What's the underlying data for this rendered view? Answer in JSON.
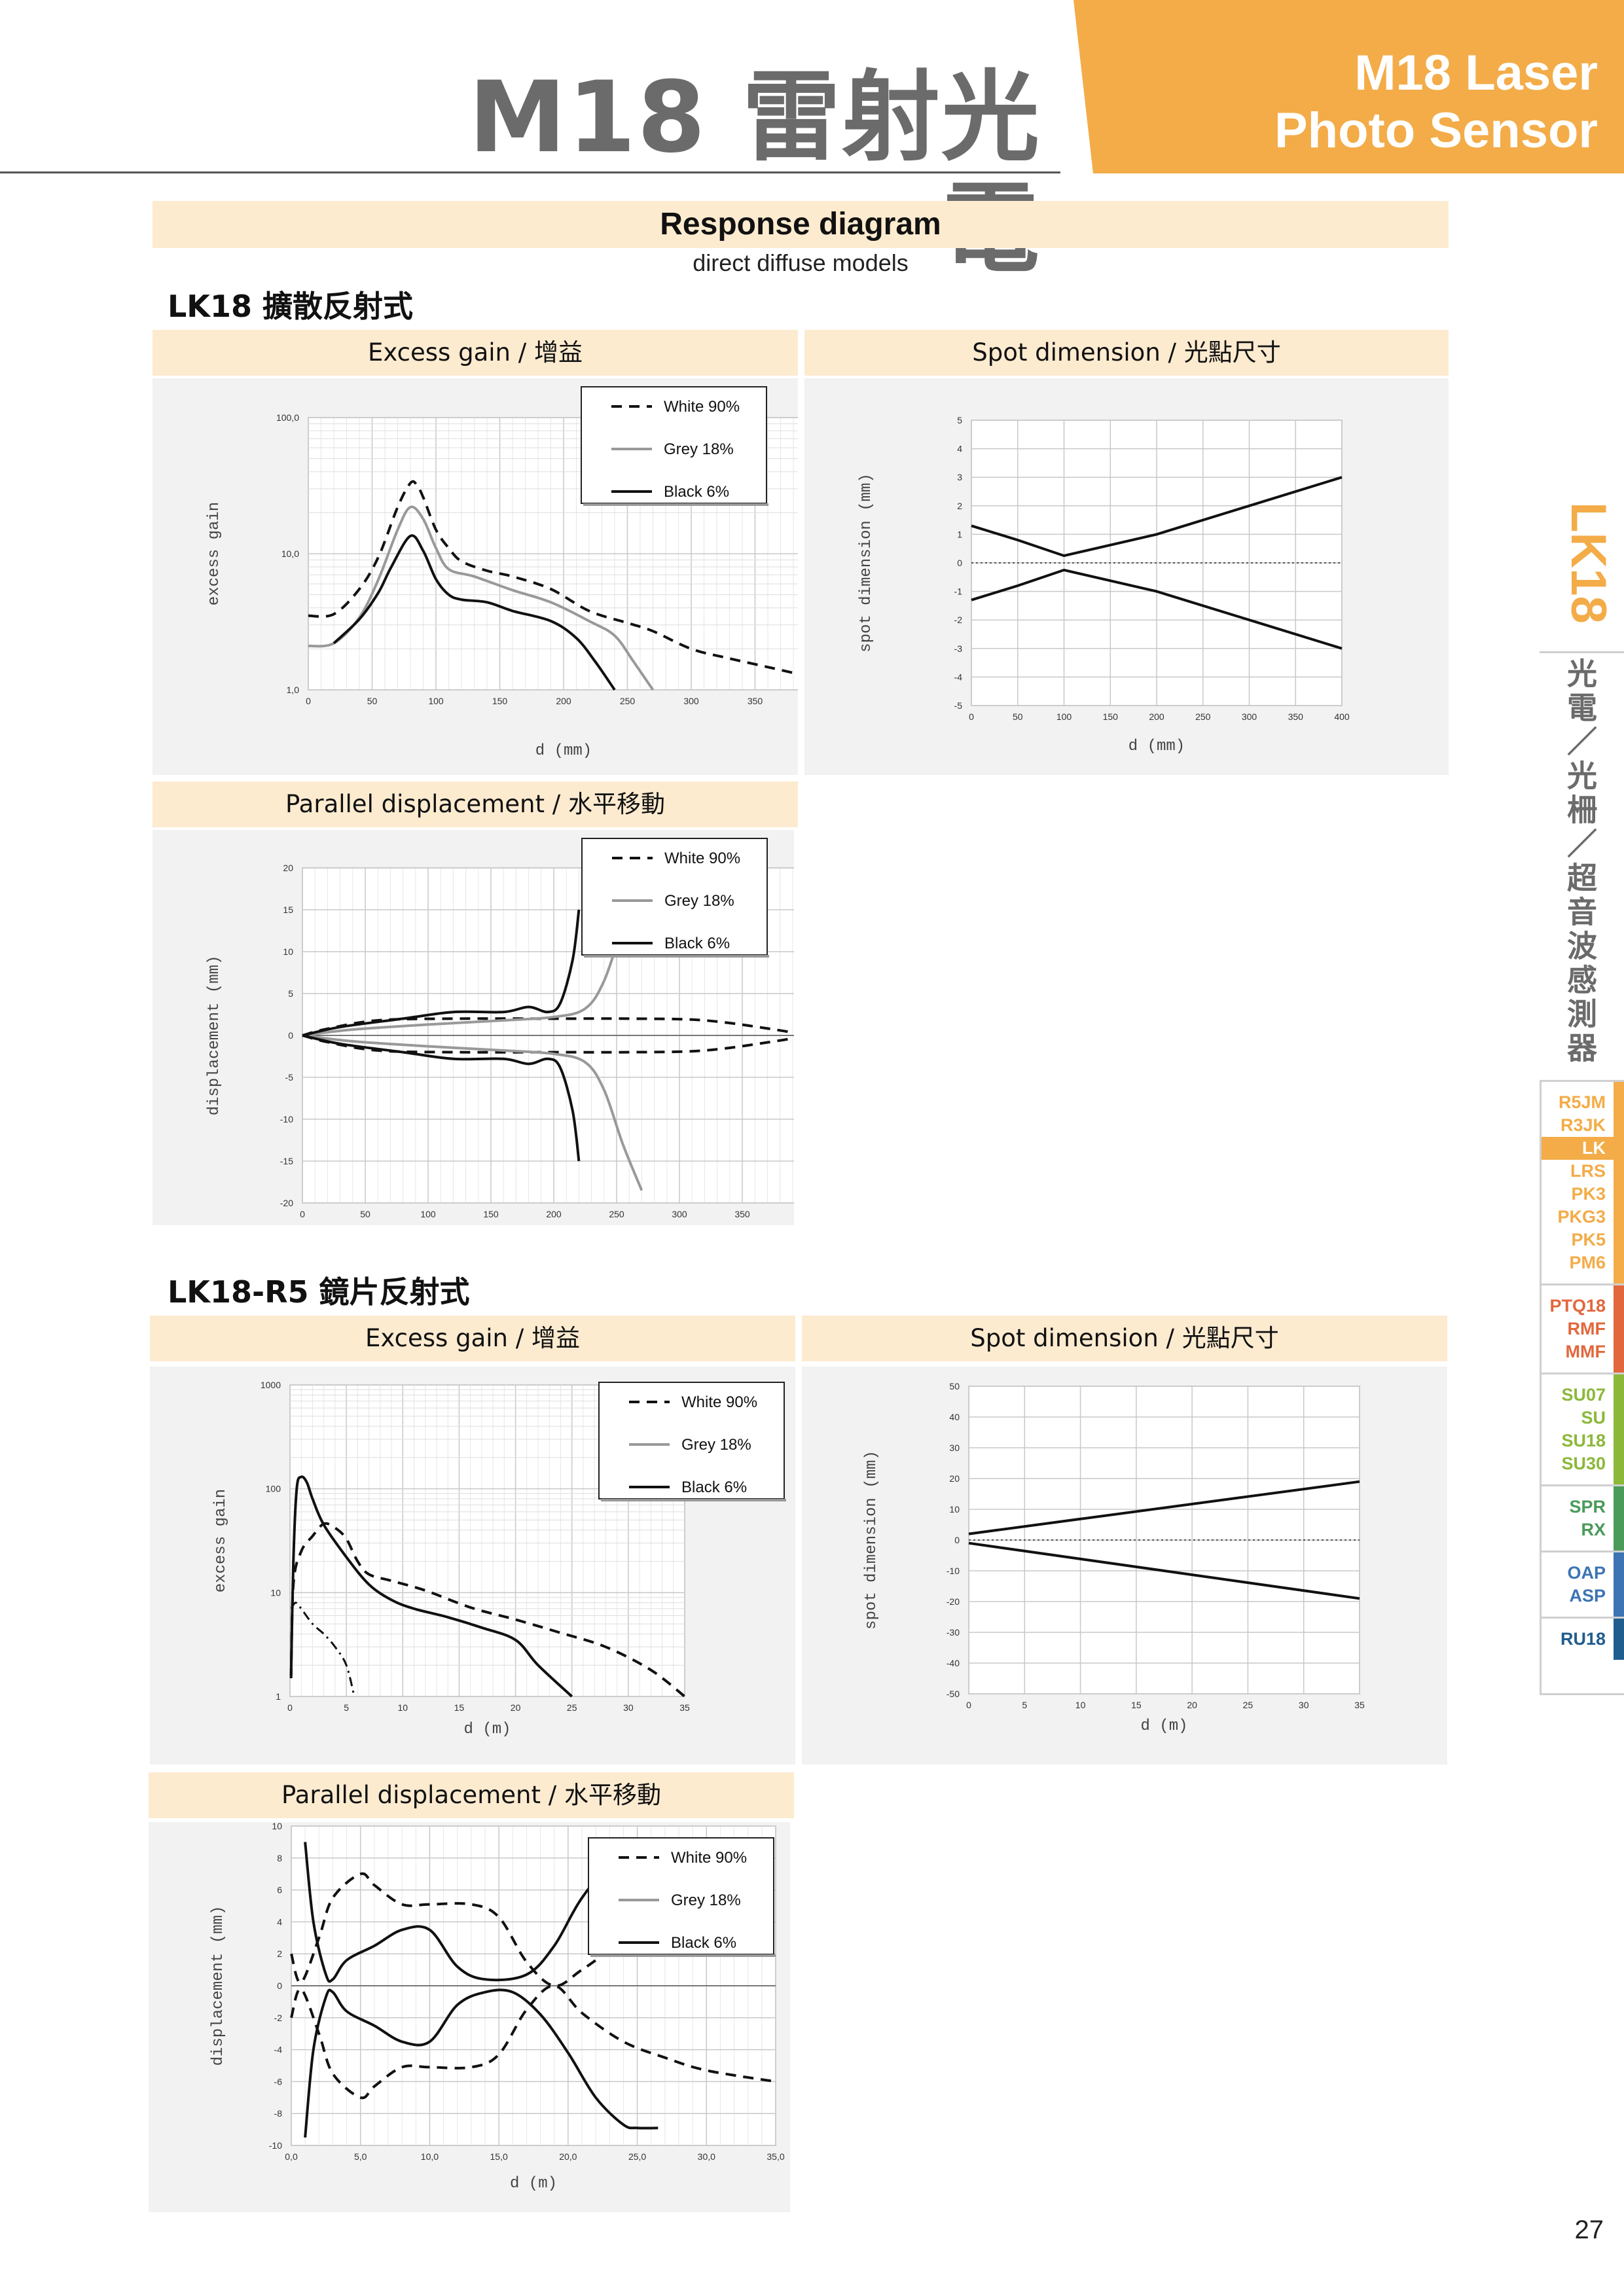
{
  "header": {
    "title_cn": "M18 雷射光電",
    "title_en_line1": "M18 Laser",
    "title_en_line2": "Photo Sensor"
  },
  "response": {
    "title": "Response diagram",
    "subtitle": "direct diffuse models"
  },
  "section1": {
    "heading": "LK18 擴散反射式",
    "excess_gain_title": "Excess gain / 增益",
    "spot_title": "Spot dimension / 光點尺寸",
    "parallel_title": "Parallel displacement / 水平移動"
  },
  "section2": {
    "heading": "LK18-R5 鏡片反射式",
    "excess_gain_title": "Excess gain / 增益",
    "spot_title": "Spot dimension / 光點尺寸",
    "parallel_title": "Parallel displacement / 水平移動"
  },
  "legend": {
    "white": "White 90%",
    "grey": "Grey 18%",
    "black": "Black 6%"
  },
  "sidebar": {
    "model": "LK18",
    "category": "光電／光柵／超音波感測器",
    "groups": [
      {
        "color": "#f3ac48",
        "items": [
          "R5JM",
          "R3JK",
          "LK",
          "LRS",
          "PK3",
          "PKG3",
          "PK5",
          "PM6"
        ],
        "active": "LK"
      },
      {
        "color": "#e2673d",
        "items": [
          "PTQ18",
          "RMF",
          "MMF"
        ]
      },
      {
        "color": "#8cb83a",
        "items": [
          "SU07",
          "SU",
          "SU18",
          "SU30"
        ]
      },
      {
        "color": "#4a9a5a",
        "items": [
          "SPR",
          "RX"
        ]
      },
      {
        "color": "#3c74b4",
        "items": [
          "OAP",
          "ASP"
        ]
      },
      {
        "color": "#1f5d8f",
        "items": [
          "RU18"
        ]
      }
    ]
  },
  "page_number": "27",
  "chart_data": [
    {
      "id": "lk18-gain",
      "type": "line",
      "title": "Excess gain / 增益",
      "xlabel": "d (mm)",
      "ylabel": "excess gain",
      "yscale": "log",
      "xlim": [
        0,
        400
      ],
      "ylim": [
        1,
        100
      ],
      "xticks": [
        "0",
        "50",
        "100",
        "150",
        "200",
        "250",
        "300",
        "350",
        "400"
      ],
      "yticks": [
        "1,0",
        "10,0",
        "100,0"
      ],
      "series": [
        {
          "name": "White 90%",
          "style": "dashed",
          "x": [
            0,
            20,
            40,
            55,
            70,
            80,
            85,
            90,
            100,
            110,
            120,
            140,
            160,
            190,
            220,
            250,
            270,
            300,
            330,
            370,
            400
          ],
          "y": [
            3.5,
            3.6,
            5.5,
            9.5,
            22,
            33,
            32,
            26,
            15,
            11,
            8.8,
            7.5,
            6.8,
            5.5,
            3.8,
            3.1,
            2.7,
            2.0,
            1.7,
            1.4,
            1.2
          ]
        },
        {
          "name": "Grey 18%",
          "style": "solid-grey",
          "x": [
            0,
            20,
            40,
            55,
            70,
            80,
            90,
            100,
            110,
            130,
            160,
            190,
            220,
            240,
            255,
            270
          ],
          "y": [
            2.1,
            2.2,
            3.4,
            6.5,
            15,
            22,
            18,
            11,
            7.7,
            6.8,
            5.4,
            4.4,
            3.2,
            2.5,
            1.6,
            1.0
          ]
        },
        {
          "name": "Black 6%",
          "style": "solid",
          "x": [
            20,
            40,
            55,
            65,
            80,
            90,
            100,
            110,
            120,
            140,
            160,
            190,
            210,
            225,
            240
          ],
          "y": [
            2.2,
            3.3,
            5.2,
            8,
            13.5,
            10.5,
            6.5,
            5.0,
            4.6,
            4.4,
            3.8,
            3.2,
            2.4,
            1.6,
            1.0
          ]
        }
      ]
    },
    {
      "id": "lk18-spot",
      "type": "line",
      "title": "Spot dimension / 光點尺寸",
      "xlabel": "d (mm)",
      "ylabel": "spot dimension (mm)",
      "xlim": [
        0,
        400
      ],
      "ylim": [
        -5,
        5
      ],
      "xticks": [
        "0",
        "50",
        "100",
        "150",
        "200",
        "250",
        "300",
        "350",
        "400"
      ],
      "yticks": [
        "-5",
        "-4",
        "-3",
        "-2",
        "-1",
        "0",
        "1",
        "2",
        "3",
        "4",
        "5"
      ],
      "series": [
        {
          "name": "upper",
          "x": [
            0,
            50,
            100,
            200,
            300,
            400
          ],
          "y": [
            1.3,
            0.8,
            0.25,
            1.0,
            2.0,
            3.0
          ]
        },
        {
          "name": "lower",
          "x": [
            0,
            50,
            100,
            200,
            300,
            400
          ],
          "y": [
            -1.3,
            -0.8,
            -0.25,
            -1.0,
            -2.0,
            -3.0
          ]
        }
      ]
    },
    {
      "id": "lk18-parallel",
      "type": "line",
      "title": "Parallel displacement / 水平移動",
      "xlabel": "",
      "ylabel": "displacement (mm)",
      "xlim": [
        0,
        400
      ],
      "ylim": [
        -20,
        20
      ],
      "xticks": [
        "0",
        "50",
        "100",
        "150",
        "200",
        "250",
        "300",
        "350",
        "400"
      ],
      "yticks": [
        "-20",
        "-15",
        "-10",
        "-5",
        "0",
        "5",
        "10",
        "15",
        "20"
      ],
      "series": [
        {
          "name": "White 90% upper",
          "style": "dashed",
          "x": [
            0,
            20,
            60,
            120,
            200,
            260,
            320,
            380,
            400
          ],
          "y": [
            0,
            0.8,
            1.8,
            2.0,
            2.0,
            2.0,
            1.8,
            0.6,
            0
          ]
        },
        {
          "name": "White 90% lower",
          "style": "dashed",
          "x": [
            0,
            20,
            60,
            120,
            200,
            260,
            320,
            380,
            400
          ],
          "y": [
            0,
            -0.8,
            -1.8,
            -2.0,
            -2.0,
            -2.0,
            -1.8,
            -0.6,
            0
          ]
        },
        {
          "name": "Grey 18% upper",
          "style": "solid-grey",
          "x": [
            0,
            40,
            100,
            160,
            200,
            225,
            240,
            255,
            270
          ],
          "y": [
            0,
            0.7,
            1.3,
            1.8,
            2.2,
            3.2,
            6.5,
            13,
            18.5
          ]
        },
        {
          "name": "Grey 18% lower",
          "style": "solid-grey",
          "x": [
            0,
            40,
            100,
            160,
            200,
            225,
            240,
            255,
            270
          ],
          "y": [
            0,
            -0.7,
            -1.3,
            -1.8,
            -2.2,
            -3.2,
            -6.5,
            -13,
            -18.5
          ]
        },
        {
          "name": "Black 6% upper",
          "style": "solid",
          "x": [
            0,
            30,
            80,
            120,
            160,
            180,
            195,
            205,
            215,
            220
          ],
          "y": [
            0,
            1.0,
            2.0,
            2.8,
            2.8,
            3.4,
            2.8,
            3.8,
            9,
            15
          ]
        },
        {
          "name": "Black 6% lower",
          "style": "solid",
          "x": [
            0,
            30,
            80,
            120,
            160,
            180,
            195,
            205,
            215,
            220
          ],
          "y": [
            0,
            -1.0,
            -2.0,
            -2.8,
            -2.8,
            -3.4,
            -2.8,
            -3.8,
            -9,
            -15
          ]
        }
      ]
    },
    {
      "id": "lk18r5-gain",
      "type": "line",
      "title": "Excess gain / 增益",
      "xlabel": "d (m)",
      "ylabel": "excess gain",
      "yscale": "log",
      "xlim": [
        0,
        35
      ],
      "ylim": [
        1,
        1000
      ],
      "xticks": [
        "0",
        "5",
        "10",
        "15",
        "20",
        "25",
        "30",
        "35"
      ],
      "yticks": [
        "1",
        "10",
        "100",
        "1000"
      ],
      "series": [
        {
          "name": "White 90%",
          "style": "dashed",
          "x": [
            0.1,
            0.3,
            1,
            2,
            3,
            4,
            5,
            6,
            7,
            9,
            12,
            16,
            20,
            24,
            28,
            32,
            35
          ],
          "y": [
            1.5,
            12,
            25,
            35,
            46,
            42,
            33,
            20,
            15,
            13,
            10.5,
            7.2,
            5.5,
            4.1,
            3.0,
            1.8,
            1.0
          ]
        },
        {
          "name": "Black 6%",
          "style": "solid",
          "x": [
            0.1,
            0.3,
            0.6,
            1,
            1.5,
            2,
            3,
            5,
            7,
            9,
            11,
            14,
            17,
            20,
            22,
            25
          ],
          "y": [
            1.6,
            20,
            100,
            130,
            115,
            80,
            45,
            22,
            12,
            8.5,
            7.0,
            5.8,
            4.6,
            3.5,
            2.0,
            1.0
          ]
        },
        {
          "name": "short-range dash-dot",
          "style": "dashdot",
          "x": [
            0.1,
            0.5,
            1,
            2,
            3,
            4,
            5,
            5.7
          ],
          "y": [
            7,
            8,
            7,
            5,
            4,
            3,
            2,
            1
          ]
        }
      ]
    },
    {
      "id": "lk18r5-spot",
      "type": "line",
      "title": "Spot dimension / 光點尺寸",
      "xlabel": "d (m)",
      "ylabel": "spot dimension (mm)",
      "xlim": [
        0,
        35
      ],
      "ylim": [
        -50,
        50
      ],
      "xticks": [
        "0",
        "5",
        "10",
        "15",
        "20",
        "25",
        "30",
        "35"
      ],
      "yticks": [
        "-50",
        "-40",
        "-30",
        "-20",
        "-10",
        "0",
        "10",
        "20",
        "30",
        "40",
        "50"
      ],
      "series": [
        {
          "name": "upper",
          "x": [
            0,
            35
          ],
          "y": [
            2,
            19
          ]
        },
        {
          "name": "lower",
          "x": [
            0,
            35
          ],
          "y": [
            -1,
            -19
          ]
        }
      ]
    },
    {
      "id": "lk18r5-parallel",
      "type": "line",
      "title": "Parallel displacement / 水平移動",
      "xlabel": "d (m)",
      "ylabel": "displacement (mm)",
      "xlim": [
        0,
        35
      ],
      "ylim": [
        -10,
        10
      ],
      "xticks": [
        "0,0",
        "5,0",
        "10,0",
        "15,0",
        "20,0",
        "25,0",
        "30,0",
        "35,0"
      ],
      "yticks": [
        "-10",
        "-8",
        "-6",
        "-4",
        "-2",
        "0",
        "2",
        "4",
        "6",
        "8",
        "10"
      ],
      "series": [
        {
          "name": "White 90% upper",
          "style": "dashed",
          "x": [
            0,
            0.7,
            2,
            3,
            5,
            6,
            8,
            10,
            13,
            15,
            17,
            19,
            21,
            24,
            27
          ],
          "y": [
            2,
            0.2,
            3,
            5.5,
            7,
            6.3,
            5.1,
            5.1,
            5.1,
            4.3,
            1.5,
            0,
            1,
            2.8,
            4.2
          ]
        },
        {
          "name": "White 90% lower",
          "style": "dashed",
          "x": [
            0,
            0.7,
            2,
            3,
            5,
            6,
            8,
            10,
            13,
            15,
            17,
            19,
            21,
            24,
            27,
            30,
            35
          ],
          "y": [
            -2,
            -0.2,
            -3,
            -5.5,
            -7,
            -6.3,
            -5.1,
            -5.1,
            -5.1,
            -4.3,
            -1.5,
            0,
            -1.7,
            -3.5,
            -4.5,
            -5.3,
            -6
          ]
        },
        {
          "name": "Black 6% upper",
          "style": "solid",
          "x": [
            1,
            1.6,
            2.5,
            3,
            4,
            6,
            8,
            10,
            12,
            14,
            17,
            19,
            21,
            24,
            25,
            26.5
          ],
          "y": [
            9,
            4,
            0.7,
            0.4,
            1.6,
            2.5,
            3.5,
            3.5,
            1.2,
            0.4,
            0.7,
            2.5,
            5.5,
            8.7,
            8.9,
            8.9
          ]
        },
        {
          "name": "Black 6% lower",
          "style": "solid",
          "x": [
            1,
            1.6,
            2.5,
            3,
            4,
            6,
            8,
            10,
            12,
            14,
            16,
            18,
            20,
            22,
            24,
            25,
            26.5
          ],
          "y": [
            -9.5,
            -4,
            -0.7,
            -0.4,
            -1.6,
            -2.5,
            -3.5,
            -3.5,
            -1.2,
            -0.4,
            -0.4,
            -1.8,
            -4.2,
            -7,
            -8.7,
            -8.9,
            -8.9
          ]
        }
      ]
    }
  ]
}
